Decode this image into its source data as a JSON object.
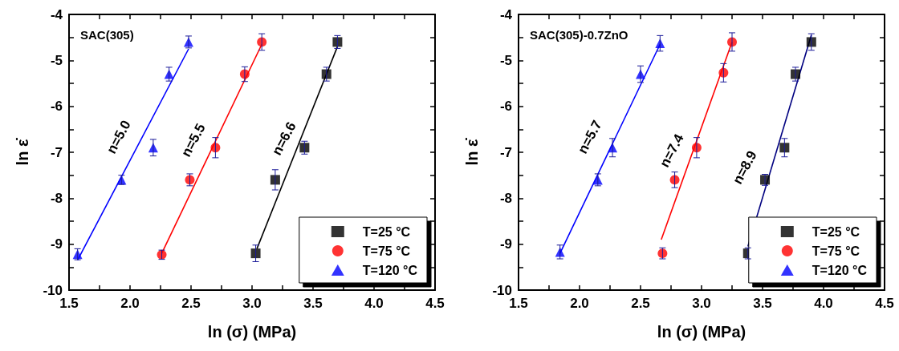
{
  "chart_data": [
    {
      "type": "scatter",
      "xlabel": "ln (σ) (MPa)",
      "ylabel": "ln ε̇",
      "xlim": [
        1.5,
        4.5
      ],
      "ylim": [
        -10,
        -4
      ],
      "xticks": [
        {
          "value": 1.5,
          "label": "1.5"
        },
        {
          "value": 2,
          "label": "2.0"
        },
        {
          "value": 2.5,
          "label": "2.5"
        },
        {
          "value": 3,
          "label": "3.0"
        },
        {
          "value": 3.5,
          "label": "3.5"
        },
        {
          "value": 4,
          "label": "4.0"
        },
        {
          "value": 4.5,
          "label": "4.5"
        }
      ],
      "yticks": [
        -10,
        -9,
        -8,
        -7,
        -6,
        -5,
        -4
      ],
      "grid": false,
      "legend": "bottom right",
      "annotations": [
        "SAC(305)",
        "n=5.0",
        "n=5.5",
        "n=6.6"
      ],
      "series": [
        {
          "name": "T=25 °C",
          "marker": "square",
          "color": "#000000",
          "x": [
            3.03,
            3.19,
            3.43,
            3.61,
            3.7
          ],
          "values": [
            -9.2,
            -7.6,
            -6.9,
            -5.3,
            -4.6
          ],
          "errors": [
            0.18,
            0.22,
            0.14,
            0.15,
            0.14
          ]
        },
        {
          "name": "T=75 °C",
          "marker": "circle",
          "color": "#ff0000",
          "x": [
            2.26,
            2.49,
            2.7,
            2.94,
            3.08
          ],
          "values": [
            -9.23,
            -7.6,
            -6.9,
            -5.3,
            -4.6
          ],
          "errors": [
            0.1,
            0.13,
            0.22,
            0.16,
            0.18
          ]
        },
        {
          "name": "T=120 °C",
          "marker": "triangle",
          "color": "#0000ff",
          "x": [
            1.57,
            1.93,
            2.19,
            2.32,
            2.48
          ],
          "values": [
            -9.22,
            -7.6,
            -6.9,
            -5.3,
            -4.6
          ],
          "errors": [
            0.12,
            0.1,
            0.18,
            0.15,
            0.13
          ]
        },
        {
          "type": "line",
          "marker": "none",
          "color": "#000000",
          "x": [
            3.04,
            3.7
          ],
          "values": [
            -9.1,
            -4.7
          ]
        },
        {
          "type": "line",
          "marker": "none",
          "color": "#ff0000",
          "x": [
            2.26,
            3.08
          ],
          "values": [
            -9.2,
            -4.65
          ]
        },
        {
          "type": "line",
          "marker": "none",
          "color": "#0000ff",
          "x": [
            1.57,
            2.48
          ],
          "values": [
            -9.35,
            -4.75
          ]
        }
      ]
    },
    {
      "type": "scatter",
      "xlabel": "ln (σ) (MPa)",
      "ylabel": "ln ε̇",
      "xlim": [
        1.5,
        4.5
      ],
      "ylim": [
        -10,
        -4
      ],
      "xticks": [
        {
          "value": 1.5,
          "label": "1.5"
        },
        {
          "value": 2,
          "label": "2.0"
        },
        {
          "value": 2.5,
          "label": "2.5"
        },
        {
          "value": 3,
          "label": "3.0"
        },
        {
          "value": 3.5,
          "label": "3.5"
        },
        {
          "value": 4,
          "label": "4.0"
        },
        {
          "value": 4.5,
          "label": "4.5"
        }
      ],
      "yticks": [
        -10,
        -9,
        -8,
        -7,
        -6,
        -5,
        -4
      ],
      "grid": false,
      "legend": "bottom right",
      "annotations": [
        "SAC(305)-0.7ZnO",
        "n=5.7",
        "n=7.4",
        "n=8.9"
      ],
      "series": [
        {
          "name": "T=25 °C",
          "marker": "square",
          "color": "#000000",
          "x": [
            3.38,
            3.52,
            3.68,
            3.77,
            3.9
          ],
          "values": [
            -9.2,
            -7.6,
            -6.9,
            -5.3,
            -4.6
          ],
          "errors": [
            0.12,
            0.12,
            0.2,
            0.15,
            0.18
          ]
        },
        {
          "name": "T=75 °C",
          "marker": "circle",
          "color": "#ff0000",
          "x": [
            2.68,
            2.78,
            2.96,
            3.18,
            3.25
          ],
          "values": [
            -9.2,
            -7.6,
            -6.9,
            -5.27,
            -4.6
          ],
          "errors": [
            0.12,
            0.17,
            0.22,
            0.2,
            0.2
          ]
        },
        {
          "name": "T=120 °C",
          "marker": "triangle",
          "color": "#0000ff",
          "x": [
            1.84,
            2.15,
            2.27,
            2.5,
            2.66
          ],
          "values": [
            -9.17,
            -7.6,
            -6.9,
            -5.3,
            -4.63
          ],
          "errors": [
            0.15,
            0.13,
            0.2,
            0.18,
            0.17
          ]
        },
        {
          "type": "line",
          "marker": "none",
          "color": "#000080",
          "x": [
            3.38,
            3.9
          ],
          "values": [
            -9.05,
            -4.45
          ]
        },
        {
          "type": "line",
          "marker": "none",
          "color": "#ff0000",
          "x": [
            2.67,
            3.25
          ],
          "values": [
            -8.9,
            -4.6
          ]
        },
        {
          "type": "line",
          "marker": "none",
          "color": "#0000ff",
          "x": [
            1.84,
            2.66
          ],
          "values": [
            -9.2,
            -4.65
          ]
        }
      ]
    }
  ]
}
